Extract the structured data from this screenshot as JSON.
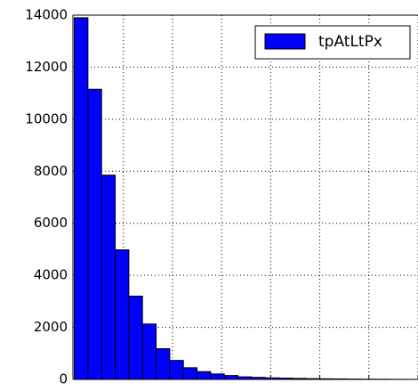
{
  "chart_data": {
    "type": "histogram",
    "series": [
      {
        "name": "tpAtLtPx",
        "color": "#0000ff",
        "values": [
          13900,
          11150,
          7850,
          4980,
          3200,
          2130,
          1180,
          730,
          450,
          300,
          210,
          150,
          100,
          80,
          60,
          50,
          40,
          30,
          25,
          20,
          15,
          10,
          8,
          5,
          3
        ]
      }
    ],
    "bins": [
      0,
      1,
      2,
      3,
      4,
      5,
      6,
      7,
      8,
      9,
      10,
      11,
      12,
      13,
      14,
      15,
      16,
      17,
      18,
      19,
      20,
      21,
      22,
      23,
      24,
      25
    ],
    "xlim": [
      -0.1,
      25.2
    ],
    "xticks": [
      3.6,
      7.2,
      10.8,
      14.4,
      18,
      21.6,
      25.2
    ],
    "ylim": [
      0,
      14000
    ],
    "yticks": [
      0,
      2000,
      4000,
      6000,
      8000,
      10000,
      12000,
      14000
    ],
    "grid": true,
    "legend": "upper right"
  }
}
